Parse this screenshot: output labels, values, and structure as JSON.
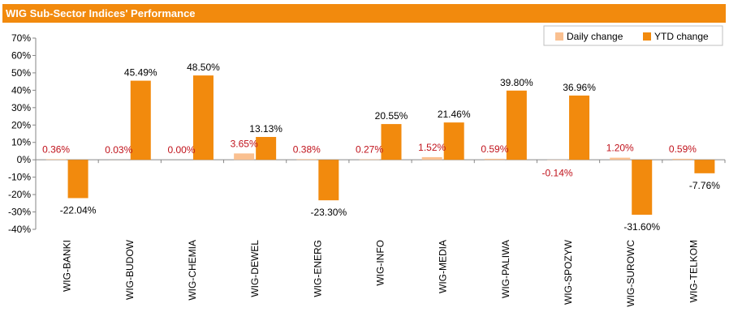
{
  "chart_data": {
    "type": "bar",
    "title": "WIG Sub-Sector Indices' Performance",
    "categories": [
      "WIG-BANKI",
      "WIG-BUDOW",
      "WIG-CHEMIA",
      "WIG-DEWEL",
      "WIG-ENERG",
      "WIG-INFO",
      "WIG-MEDIA",
      "WIG-PALIWA",
      "WIG-SPOZYW",
      "WIG-SUROWC",
      "WIG-TELKOM"
    ],
    "series": [
      {
        "name": "Daily change",
        "color": "#fac090",
        "values": [
          0.36,
          0.03,
          0.0,
          3.65,
          0.38,
          0.27,
          1.52,
          0.59,
          -0.14,
          1.2,
          0.59
        ],
        "labels": [
          "0.36%",
          "0.03%",
          "0.00%",
          "3.65%",
          "0.38%",
          "0.27%",
          "1.52%",
          "0.59%",
          "-0.14%",
          "1.20%",
          "0.59%"
        ]
      },
      {
        "name": "YTD change",
        "color": "#f28a0d",
        "values": [
          -22.04,
          45.49,
          48.5,
          13.13,
          -23.3,
          20.55,
          21.46,
          39.8,
          36.96,
          -31.6,
          -7.76
        ],
        "labels": [
          "-22.04%",
          "45.49%",
          "48.50%",
          "13.13%",
          "-23.30%",
          "20.55%",
          "21.46%",
          "39.80%",
          "36.96%",
          "-31.60%",
          "-7.76%"
        ]
      }
    ],
    "ylim": [
      -40,
      70
    ],
    "yticks": [
      70,
      60,
      50,
      40,
      30,
      20,
      10,
      0,
      -10,
      -20,
      -30,
      -40
    ],
    "ytick_labels": [
      "70%",
      "60%",
      "50%",
      "40%",
      "30%",
      "20%",
      "10%",
      "0%",
      "-10%",
      "-20%",
      "-30%",
      "-40%"
    ],
    "xlabel": "",
    "ylabel": "",
    "legend": "top-right",
    "grid": false
  }
}
